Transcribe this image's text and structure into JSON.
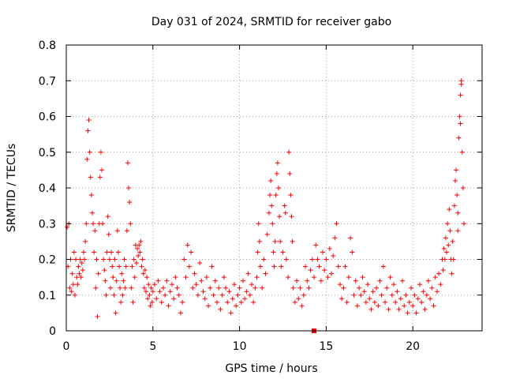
{
  "chart_data": {
    "type": "scatter",
    "title": "Day 031 of 2024, SRMTID for receiver gabo",
    "xlabel": "GPS time / hours",
    "ylabel": "SRMTID / TECUs",
    "xlim": [
      0,
      24
    ],
    "ylim": [
      0,
      0.8
    ],
    "xticks": [
      0,
      5,
      10,
      15,
      20
    ],
    "yticks": [
      0,
      0.1,
      0.2,
      0.3,
      0.4,
      0.5,
      0.6,
      0.7,
      0.8
    ],
    "xtick_labels": [
      "0",
      "5",
      "10",
      "15",
      "20"
    ],
    "ytick_labels": [
      "0",
      "0.1",
      "0.2",
      "0.3",
      "0.4",
      "0.5",
      "0.6",
      "0.7",
      "0.8"
    ],
    "grid": true,
    "marker": "+",
    "series_color": "#ff0000",
    "series": [
      {
        "name": "SRMTID",
        "points": [
          [
            0.05,
            0.29
          ],
          [
            0.1,
            0.18
          ],
          [
            0.15,
            0.3
          ],
          [
            0.2,
            0.12
          ],
          [
            0.25,
            0.2
          ],
          [
            0.3,
            0.11
          ],
          [
            0.35,
            0.16
          ],
          [
            0.4,
            0.13
          ],
          [
            0.45,
            0.22
          ],
          [
            0.5,
            0.1
          ],
          [
            0.55,
            0.2
          ],
          [
            0.6,
            0.15
          ],
          [
            0.65,
            0.13
          ],
          [
            0.7,
            0.18
          ],
          [
            0.75,
            0.16
          ],
          [
            0.8,
            0.2
          ],
          [
            0.85,
            0.15
          ],
          [
            0.9,
            0.19
          ],
          [
            0.95,
            0.17
          ],
          [
            1.0,
            0.22
          ],
          [
            1.05,
            0.2
          ],
          [
            1.1,
            0.25
          ],
          [
            1.15,
            0.3
          ],
          [
            1.2,
            0.48
          ],
          [
            1.25,
            0.56
          ],
          [
            1.3,
            0.59
          ],
          [
            1.35,
            0.5
          ],
          [
            1.4,
            0.43
          ],
          [
            1.45,
            0.38
          ],
          [
            1.5,
            0.33
          ],
          [
            1.55,
            0.3
          ],
          [
            1.6,
            0.22
          ],
          [
            1.65,
            0.28
          ],
          [
            1.7,
            0.12
          ],
          [
            1.75,
            0.2
          ],
          [
            1.8,
            0.04
          ],
          [
            1.85,
            0.16
          ],
          [
            1.9,
            0.3
          ],
          [
            1.95,
            0.43
          ],
          [
            2.0,
            0.5
          ],
          [
            2.05,
            0.45
          ],
          [
            2.1,
            0.3
          ],
          [
            2.15,
            0.2
          ],
          [
            2.2,
            0.17
          ],
          [
            2.25,
            0.14
          ],
          [
            2.3,
            0.1
          ],
          [
            2.35,
            0.22
          ],
          [
            2.4,
            0.32
          ],
          [
            2.45,
            0.27
          ],
          [
            2.5,
            0.2
          ],
          [
            2.55,
            0.12
          ],
          [
            2.6,
            0.22
          ],
          [
            2.65,
            0.18
          ],
          [
            2.7,
            0.15
          ],
          [
            2.75,
            0.1
          ],
          [
            2.8,
            0.2
          ],
          [
            2.85,
            0.05
          ],
          [
            2.9,
            0.14
          ],
          [
            2.95,
            0.28
          ],
          [
            3.0,
            0.22
          ],
          [
            3.05,
            0.18
          ],
          [
            3.1,
            0.12
          ],
          [
            3.15,
            0.08
          ],
          [
            3.2,
            0.16
          ],
          [
            3.25,
            0.1
          ],
          [
            3.3,
            0.14
          ],
          [
            3.35,
            0.2
          ],
          [
            3.4,
            0.12
          ],
          [
            3.45,
            0.18
          ],
          [
            3.5,
            0.28
          ],
          [
            3.55,
            0.47
          ],
          [
            3.6,
            0.4
          ],
          [
            3.65,
            0.36
          ],
          [
            3.7,
            0.3
          ],
          [
            3.75,
            0.12
          ],
          [
            3.8,
            0.18
          ],
          [
            3.85,
            0.08
          ],
          [
            3.9,
            0.2
          ],
          [
            3.95,
            0.15
          ],
          [
            4.0,
            0.24
          ],
          [
            4.05,
            0.19
          ],
          [
            4.1,
            0.23
          ],
          [
            4.15,
            0.21
          ],
          [
            4.2,
            0.24
          ],
          [
            4.25,
            0.22
          ],
          [
            4.3,
            0.25
          ],
          [
            4.35,
            0.18
          ],
          [
            4.4,
            0.2
          ],
          [
            4.45,
            0.16
          ],
          [
            4.5,
            0.12
          ],
          [
            4.55,
            0.17
          ],
          [
            4.6,
            0.11
          ],
          [
            4.65,
            0.15
          ],
          [
            4.7,
            0.09
          ],
          [
            4.75,
            0.13
          ],
          [
            4.8,
            0.1
          ],
          [
            4.85,
            0.07
          ],
          [
            4.9,
            0.12
          ],
          [
            4.95,
            0.08
          ],
          [
            5.0,
            0.11
          ],
          [
            5.1,
            0.13
          ],
          [
            5.2,
            0.09
          ],
          [
            5.3,
            0.14
          ],
          [
            5.4,
            0.11
          ],
          [
            5.5,
            0.08
          ],
          [
            5.6,
            0.12
          ],
          [
            5.7,
            0.1
          ],
          [
            5.8,
            0.14
          ],
          [
            5.9,
            0.07
          ],
          [
            6.0,
            0.11
          ],
          [
            6.1,
            0.13
          ],
          [
            6.2,
            0.09
          ],
          [
            6.3,
            0.15
          ],
          [
            6.4,
            0.12
          ],
          [
            6.5,
            0.1
          ],
          [
            6.6,
            0.05
          ],
          [
            6.7,
            0.08
          ],
          [
            6.8,
            0.2
          ],
          [
            6.9,
            0.15
          ],
          [
            7.0,
            0.24
          ],
          [
            7.1,
            0.18
          ],
          [
            7.2,
            0.22
          ],
          [
            7.3,
            0.12
          ],
          [
            7.4,
            0.16
          ],
          [
            7.5,
            0.13
          ],
          [
            7.6,
            0.1
          ],
          [
            7.7,
            0.19
          ],
          [
            7.8,
            0.14
          ],
          [
            7.9,
            0.11
          ],
          [
            8.0,
            0.09
          ],
          [
            8.1,
            0.15
          ],
          [
            8.2,
            0.07
          ],
          [
            8.3,
            0.12
          ],
          [
            8.4,
            0.18
          ],
          [
            8.5,
            0.1
          ],
          [
            8.6,
            0.14
          ],
          [
            8.7,
            0.08
          ],
          [
            8.8,
            0.12
          ],
          [
            8.9,
            0.06
          ],
          [
            9.0,
            0.1
          ],
          [
            9.1,
            0.15
          ],
          [
            9.2,
            0.12
          ],
          [
            9.3,
            0.08
          ],
          [
            9.4,
            0.11
          ],
          [
            9.5,
            0.05
          ],
          [
            9.6,
            0.09
          ],
          [
            9.7,
            0.13
          ],
          [
            9.8,
            0.07
          ],
          [
            9.9,
            0.1
          ],
          [
            10.0,
            0.12
          ],
          [
            10.1,
            0.08
          ],
          [
            10.2,
            0.14
          ],
          [
            10.3,
            0.09
          ],
          [
            10.4,
            0.11
          ],
          [
            10.5,
            0.16
          ],
          [
            10.6,
            0.1
          ],
          [
            10.7,
            0.13
          ],
          [
            10.8,
            0.08
          ],
          [
            10.9,
            0.12
          ],
          [
            11.0,
            0.15
          ],
          [
            11.05,
            0.22
          ],
          [
            11.1,
            0.3
          ],
          [
            11.15,
            0.25
          ],
          [
            11.2,
            0.18
          ],
          [
            11.3,
            0.12
          ],
          [
            11.4,
            0.2
          ],
          [
            11.5,
            0.16
          ],
          [
            11.6,
            0.27
          ],
          [
            11.7,
            0.33
          ],
          [
            11.75,
            0.38
          ],
          [
            11.8,
            0.42
          ],
          [
            11.85,
            0.35
          ],
          [
            11.9,
            0.3
          ],
          [
            11.95,
            0.22
          ],
          [
            12.0,
            0.18
          ],
          [
            12.05,
            0.25
          ],
          [
            12.1,
            0.38
          ],
          [
            12.15,
            0.44
          ],
          [
            12.2,
            0.47
          ],
          [
            12.25,
            0.4
          ],
          [
            12.3,
            0.32
          ],
          [
            12.35,
            0.25
          ],
          [
            12.4,
            0.18
          ],
          [
            12.5,
            0.22
          ],
          [
            12.6,
            0.35
          ],
          [
            12.65,
            0.33
          ],
          [
            12.7,
            0.2
          ],
          [
            12.8,
            0.15
          ],
          [
            12.85,
            0.5
          ],
          [
            12.9,
            0.44
          ],
          [
            12.95,
            0.38
          ],
          [
            13.0,
            0.32
          ],
          [
            13.05,
            0.25
          ],
          [
            13.1,
            0.12
          ],
          [
            13.2,
            0.08
          ],
          [
            13.3,
            0.14
          ],
          [
            13.4,
            0.09
          ],
          [
            13.5,
            0.12
          ],
          [
            13.6,
            0.07
          ],
          [
            13.7,
            0.1
          ],
          [
            13.8,
            0.18
          ],
          [
            13.9,
            0.14
          ],
          [
            14.0,
            0.12
          ],
          [
            14.1,
            0.17
          ],
          [
            14.2,
            0.2
          ],
          [
            14.3,
            0.15
          ],
          [
            14.4,
            0.24
          ],
          [
            14.5,
            0.2
          ],
          [
            14.6,
            0.18
          ],
          [
            14.7,
            0.14
          ],
          [
            14.8,
            0.22
          ],
          [
            14.9,
            0.17
          ],
          [
            15.0,
            0.2
          ],
          [
            15.1,
            0.15
          ],
          [
            15.2,
            0.23
          ],
          [
            15.3,
            0.16
          ],
          [
            15.4,
            0.21
          ],
          [
            15.5,
            0.26
          ],
          [
            15.6,
            0.3
          ],
          [
            15.7,
            0.18
          ],
          [
            15.8,
            0.13
          ],
          [
            15.9,
            0.09
          ],
          [
            16.0,
            0.12
          ],
          [
            16.1,
            0.18
          ],
          [
            16.2,
            0.08
          ],
          [
            16.3,
            0.15
          ],
          [
            16.4,
            0.26
          ],
          [
            16.5,
            0.22
          ],
          [
            16.6,
            0.1
          ],
          [
            16.7,
            0.14
          ],
          [
            16.8,
            0.07
          ],
          [
            16.9,
            0.12
          ],
          [
            17.0,
            0.1
          ],
          [
            17.1,
            0.15
          ],
          [
            17.2,
            0.11
          ],
          [
            17.3,
            0.08
          ],
          [
            17.4,
            0.13
          ],
          [
            17.5,
            0.09
          ],
          [
            17.6,
            0.06
          ],
          [
            17.7,
            0.11
          ],
          [
            17.8,
            0.08
          ],
          [
            17.9,
            0.12
          ],
          [
            18.0,
            0.07
          ],
          [
            18.1,
            0.14
          ],
          [
            18.2,
            0.1
          ],
          [
            18.3,
            0.18
          ],
          [
            18.4,
            0.08
          ],
          [
            18.5,
            0.12
          ],
          [
            18.6,
            0.06
          ],
          [
            18.7,
            0.15
          ],
          [
            18.8,
            0.1
          ],
          [
            18.9,
            0.13
          ],
          [
            19.0,
            0.08
          ],
          [
            19.1,
            0.11
          ],
          [
            19.2,
            0.06
          ],
          [
            19.3,
            0.09
          ],
          [
            19.4,
            0.14
          ],
          [
            19.5,
            0.07
          ],
          [
            19.6,
            0.1
          ],
          [
            19.7,
            0.05
          ],
          [
            19.8,
            0.08
          ],
          [
            19.9,
            0.12
          ],
          [
            20.0,
            0.07
          ],
          [
            20.1,
            0.1
          ],
          [
            20.2,
            0.05
          ],
          [
            20.3,
            0.09
          ],
          [
            20.4,
            0.13
          ],
          [
            20.5,
            0.08
          ],
          [
            20.6,
            0.11
          ],
          [
            20.7,
            0.06
          ],
          [
            20.8,
            0.1
          ],
          [
            20.9,
            0.14
          ],
          [
            21.0,
            0.09
          ],
          [
            21.1,
            0.12
          ],
          [
            21.2,
            0.07
          ],
          [
            21.3,
            0.15
          ],
          [
            21.4,
            0.11
          ],
          [
            21.5,
            0.16
          ],
          [
            21.6,
            0.13
          ],
          [
            21.7,
            0.2
          ],
          [
            21.75,
            0.17
          ],
          [
            21.8,
            0.23
          ],
          [
            21.85,
            0.2
          ],
          [
            21.9,
            0.26
          ],
          [
            21.95,
            0.22
          ],
          [
            22.0,
            0.3
          ],
          [
            22.05,
            0.24
          ],
          [
            22.1,
            0.34
          ],
          [
            22.15,
            0.28
          ],
          [
            22.2,
            0.2
          ],
          [
            22.25,
            0.16
          ],
          [
            22.3,
            0.25
          ],
          [
            22.35,
            0.2
          ],
          [
            22.4,
            0.35
          ],
          [
            22.45,
            0.42
          ],
          [
            22.5,
            0.45
          ],
          [
            22.55,
            0.38
          ],
          [
            22.6,
            0.28
          ],
          [
            22.65,
            0.54
          ],
          [
            22.7,
            0.6
          ],
          [
            22.75,
            0.66
          ],
          [
            22.8,
            0.7
          ],
          [
            22.85,
            0.5
          ],
          [
            22.9,
            0.4
          ],
          [
            22.95,
            0.3
          ],
          [
            22.75,
            0.58
          ],
          [
            22.8,
            0.69
          ],
          [
            22.6,
            0.33
          ]
        ]
      }
    ],
    "marked_point": [
      14.3,
      0
    ]
  }
}
